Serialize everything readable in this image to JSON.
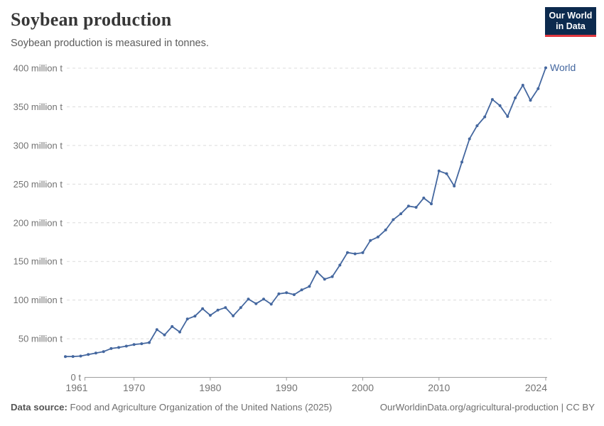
{
  "header": {
    "title": "Soybean production",
    "subtitle": "Soybean production is measured in tonnes."
  },
  "logo": {
    "line1": "Our World",
    "line2": "in Data"
  },
  "colors": {
    "series_blue": "#44679f",
    "logo_navy": "#0c2a4e",
    "logo_red": "#e0373f",
    "gridline": "#dcdcdc",
    "axis": "#9e9e9e",
    "tick_label": "#737373"
  },
  "chart_data": {
    "type": "line",
    "title": "Soybean production",
    "ylabel": "",
    "xlabel": "",
    "unit": "million tonnes",
    "xlim": [
      1961,
      2024
    ],
    "ylim": [
      0,
      400
    ],
    "grid": "horizontal-dashed",
    "legend_position": "end-of-line-label",
    "y_ticks": [
      {
        "value": 0,
        "label": "0 t"
      },
      {
        "value": 50,
        "label": "50 million t"
      },
      {
        "value": 100,
        "label": "100 million t"
      },
      {
        "value": 150,
        "label": "150 million t"
      },
      {
        "value": 200,
        "label": "200 million t"
      },
      {
        "value": 250,
        "label": "250 million t"
      },
      {
        "value": 300,
        "label": "300 million t"
      },
      {
        "value": 350,
        "label": "350 million t"
      },
      {
        "value": 400,
        "label": "400 million t"
      }
    ],
    "x_ticks": [
      1961,
      1970,
      1980,
      1990,
      2000,
      2010,
      2024
    ],
    "series": [
      {
        "name": "World",
        "color": "#44679f",
        "x": [
          1961,
          1962,
          1963,
          1964,
          1965,
          1966,
          1967,
          1968,
          1969,
          1970,
          1971,
          1972,
          1973,
          1974,
          1975,
          1976,
          1977,
          1978,
          1979,
          1980,
          1981,
          1982,
          1983,
          1984,
          1985,
          1986,
          1987,
          1988,
          1989,
          1990,
          1991,
          1992,
          1993,
          1994,
          1995,
          1996,
          1997,
          1998,
          1999,
          2000,
          2001,
          2002,
          2003,
          2004,
          2005,
          2006,
          2007,
          2008,
          2009,
          2010,
          2011,
          2012,
          2013,
          2014,
          2015,
          2016,
          2017,
          2018,
          2019,
          2020,
          2021,
          2022,
          2023,
          2024
        ],
        "values": [
          26.9,
          27.0,
          27.6,
          29.6,
          31.4,
          33.3,
          37.3,
          38.7,
          40.4,
          42.5,
          43.5,
          45.0,
          61.8,
          54.8,
          65.8,
          58.7,
          75.5,
          79.3,
          88.8,
          80.3,
          87.0,
          90.3,
          79.5,
          90.2,
          101.3,
          95.3,
          101.2,
          94.7,
          108.0,
          109.5,
          107.0,
          113.2,
          117.7,
          136.6,
          127.0,
          130.3,
          145.2,
          161.5,
          159.8,
          161.3,
          177.0,
          181.6,
          190.7,
          204.0,
          211.6,
          221.5,
          220.0,
          232.0,
          224.5,
          267.0,
          263.5,
          247.5,
          278.5,
          308.5,
          325.5,
          337.0,
          359.5,
          351.5,
          337.5,
          361.5,
          378.0,
          358.5,
          373.5,
          400.5
        ]
      }
    ]
  },
  "end_label": "World",
  "footer": {
    "source_label": "Data source:",
    "source_text": " Food and Agriculture Organization of the United Nations (2025)",
    "link_text": "OurWorldinData.org/agricultural-production | CC BY"
  }
}
